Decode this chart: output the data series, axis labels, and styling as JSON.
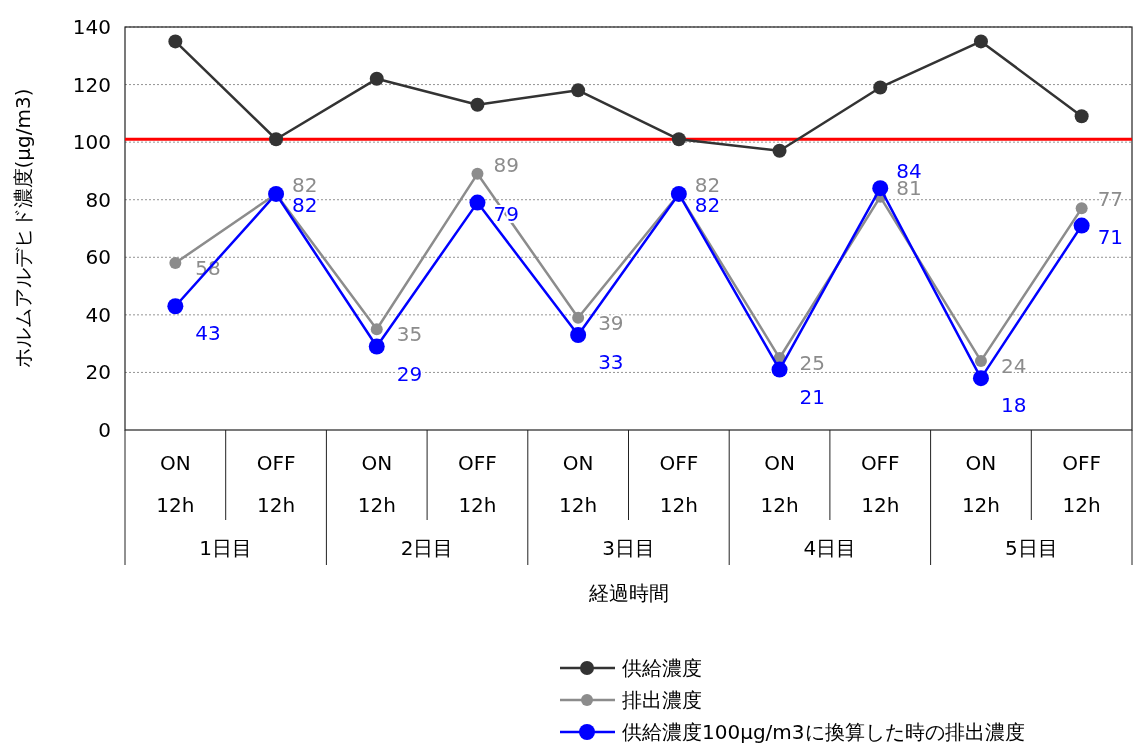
{
  "chart_data": {
    "type": "line",
    "ylabel": "ホルムアルデヒド濃度(μg/m3)",
    "xlabel": "経過時間",
    "categories": [
      "ON\n12h",
      "OFF\n12h",
      "ON\n12h",
      "OFF\n12h",
      "ON\n12h",
      "OFF\n12h",
      "ON\n12h",
      "OFF\n12h",
      "ON\n12h",
      "OFF\n12h"
    ],
    "annotations": [
      "1日目",
      "2日目",
      "3日目",
      "4日目",
      "5日目"
    ],
    "series": [
      {
        "name": "供給濃度",
        "color": "#333333",
        "values": [
          135,
          101,
          122,
          113,
          118,
          101,
          97,
          119,
          135,
          109
        ]
      },
      {
        "name": "排出濃度",
        "color": "#8c8c8c",
        "values": [
          58,
          82,
          35,
          89,
          39,
          82,
          25,
          81,
          24,
          77
        ],
        "value_labels": [
          "58",
          "82",
          "35",
          "89",
          "39",
          "82",
          "25",
          "81",
          "24",
          "77"
        ]
      },
      {
        "name": "供給濃度100μg/m3に換算した時の排出濃度",
        "color": "#0000ff",
        "values": [
          43,
          82,
          29,
          79,
          33,
          82,
          21,
          84,
          18,
          71
        ],
        "value_labels": [
          "43",
          "82",
          "29",
          "79",
          "33",
          "82",
          "21",
          "84",
          "18",
          "71"
        ]
      }
    ],
    "ref_lines": [
      {
        "axis": "y",
        "value": 101,
        "color": "#ff0000"
      }
    ],
    "ylim": [
      0,
      140
    ],
    "yticks": [
      0,
      20,
      40,
      60,
      80,
      100,
      120,
      140
    ],
    "grid": "y",
    "legend": "bottom",
    "marker": "circle",
    "line_style": "solid"
  }
}
